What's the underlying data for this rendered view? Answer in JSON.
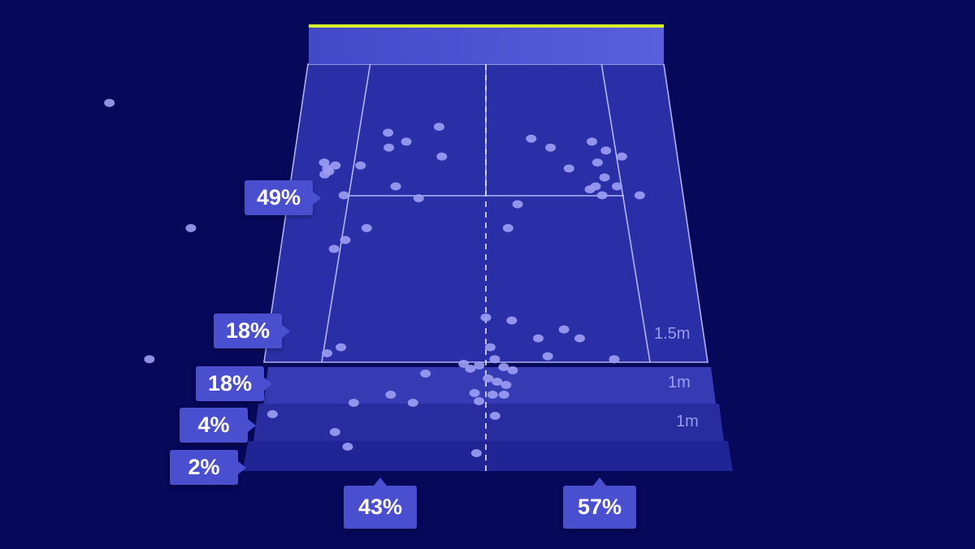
{
  "colors": {
    "background": "#06085a",
    "court_fill": "#2a2fa8",
    "court_lines": "#c8ccff",
    "net": "#4a50cc",
    "net_tape": "#d8f030",
    "zone_1": "#5358d6",
    "zone_2": "#3c41bc",
    "zone_3": "#2c31a6",
    "zone_4": "#23289a",
    "dot": "#9a9cf2",
    "label_bg": "#4a4fd0"
  },
  "depth_zones": [
    {
      "pct": "49%",
      "distance": ""
    },
    {
      "pct": "18%",
      "distance": "1.5m"
    },
    {
      "pct": "18%",
      "distance": "1m"
    },
    {
      "pct": "4%",
      "distance": "1m"
    },
    {
      "pct": "2%",
      "distance": ""
    }
  ],
  "sides": [
    {
      "pct": "43%"
    },
    {
      "pct": "57%"
    }
  ],
  "chart_data": {
    "type": "scatter",
    "title": "",
    "xlabel": "",
    "ylabel": "",
    "description_units": "x: lateral court position (-1 = left edge, 1 = right edge); y: depth (0 = net, 1 = baseline, >1 = beyond baseline)",
    "depth_zone_percentages": [
      49,
      18,
      18,
      4,
      2
    ],
    "side_percentages": [
      43,
      57
    ],
    "points": [
      {
        "x": -2.05,
        "y": 0.13
      },
      {
        "x": -1.46,
        "y": 0.55
      },
      {
        "x": -1.52,
        "y": 0.99
      },
      {
        "x": -0.52,
        "y": 0.23
      },
      {
        "x": -0.42,
        "y": 0.26
      },
      {
        "x": -0.51,
        "y": 0.28
      },
      {
        "x": -0.25,
        "y": 0.21
      },
      {
        "x": -0.65,
        "y": 0.34
      },
      {
        "x": -0.78,
        "y": 0.34
      },
      {
        "x": -0.84,
        "y": 0.33
      },
      {
        "x": -0.82,
        "y": 0.35
      },
      {
        "x": -1.11,
        "y": 0.41
      },
      {
        "x": -0.81,
        "y": 0.36
      },
      {
        "x": -0.46,
        "y": 0.41
      },
      {
        "x": -0.34,
        "y": 0.45
      },
      {
        "x": -0.72,
        "y": 0.44
      },
      {
        "x": -0.59,
        "y": 0.55
      },
      {
        "x": -0.69,
        "y": 0.59
      },
      {
        "x": -0.74,
        "y": 0.62
      },
      {
        "x": -0.96,
        "y": 0.42
      },
      {
        "x": -0.83,
        "y": 0.37
      },
      {
        "x": -0.23,
        "y": 0.31
      },
      {
        "x": 0.24,
        "y": 0.25
      },
      {
        "x": 0.34,
        "y": 0.28
      },
      {
        "x": 0.56,
        "y": 0.26
      },
      {
        "x": 0.58,
        "y": 0.33
      },
      {
        "x": 0.63,
        "y": 0.29
      },
      {
        "x": 0.71,
        "y": 0.31
      },
      {
        "x": 0.43,
        "y": 0.35
      },
      {
        "x": 0.53,
        "y": 0.42
      },
      {
        "x": 0.56,
        "y": 0.41
      },
      {
        "x": 0.61,
        "y": 0.38
      },
      {
        "x": 0.67,
        "y": 0.41
      },
      {
        "x": 0.59,
        "y": 0.44
      },
      {
        "x": 0.78,
        "y": 0.44
      },
      {
        "x": 0.16,
        "y": 0.47
      },
      {
        "x": 0.11,
        "y": 0.55
      },
      {
        "x": 0.12,
        "y": 0.86
      },
      {
        "x": 0.0,
        "y": 0.85
      },
      {
        "x": -0.27,
        "y": 1.07
      },
      {
        "x": -0.03,
        "y": 1.02
      },
      {
        "x": 0.12,
        "y": 1.05
      },
      {
        "x": 0.36,
        "y": 0.89
      },
      {
        "x": 0.43,
        "y": 0.92
      },
      {
        "x": 0.24,
        "y": 0.92
      },
      {
        "x": 0.28,
        "y": 0.98
      },
      {
        "x": 0.58,
        "y": 0.99
      },
      {
        "x": -0.66,
        "y": 0.95
      },
      {
        "x": -0.72,
        "y": 0.97
      },
      {
        "x": 0.02,
        "y": 0.95
      },
      {
        "x": 0.04,
        "y": 0.99
      },
      {
        "x": 0.08,
        "y": 1.03
      },
      {
        "x": -0.07,
        "y": 1.04
      },
      {
        "x": -0.1,
        "y": 1.01
      },
      {
        "x": 0.01,
        "y": 1.1
      },
      {
        "x": 0.05,
        "y": 1.12
      },
      {
        "x": 0.09,
        "y": 1.14
      },
      {
        "x": 0.03,
        "y": 1.2
      },
      {
        "x": -0.05,
        "y": 1.19
      },
      {
        "x": -0.03,
        "y": 1.24
      },
      {
        "x": 0.08,
        "y": 1.2
      },
      {
        "x": -0.32,
        "y": 1.25
      },
      {
        "x": -0.42,
        "y": 1.2
      },
      {
        "x": -0.58,
        "y": 1.25
      },
      {
        "x": -0.93,
        "y": 1.32
      },
      {
        "x": 0.04,
        "y": 1.33
      },
      {
        "x": -0.65,
        "y": 1.43
      },
      {
        "x": -0.59,
        "y": 1.52
      },
      {
        "x": -0.04,
        "y": 1.56
      }
    ]
  }
}
